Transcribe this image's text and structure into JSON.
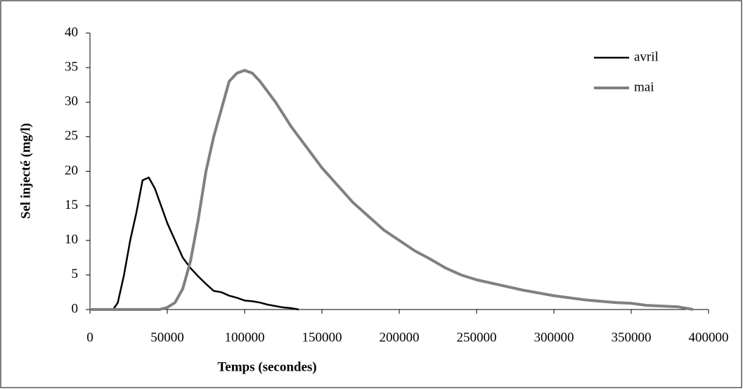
{
  "chart_data": {
    "type": "line",
    "x_label": "Temps (secondes)",
    "y_label": "Sel injecté (mg/l)",
    "xlim": [
      0,
      400000
    ],
    "xticks": [
      0,
      50000,
      100000,
      150000,
      200000,
      250000,
      300000,
      350000,
      400000
    ],
    "ylim": [
      0,
      40
    ],
    "yticks": [
      0,
      5,
      10,
      15,
      20,
      25,
      30,
      35,
      40
    ],
    "grid": false,
    "legend": "upper-right",
    "series": [
      {
        "name": "avril",
        "color": "#000000",
        "x": [
          0,
          15000,
          18000,
          22000,
          26000,
          30000,
          34000,
          38000,
          42000,
          46000,
          50000,
          55000,
          60000,
          65000,
          70000,
          75000,
          80000,
          85000,
          90000,
          95000,
          100000,
          105000,
          110000,
          115000,
          120000,
          125000,
          130000,
          135000
        ],
        "values": [
          0,
          0,
          1,
          5,
          10,
          14,
          18.7,
          19.1,
          17.5,
          15,
          12.5,
          10,
          7.5,
          6,
          4.8,
          3.7,
          2.7,
          2.5,
          2,
          1.7,
          1.3,
          1.2,
          1,
          0.7,
          0.5,
          0.3,
          0.2,
          0
        ]
      },
      {
        "name": "mai",
        "color": "#808080",
        "x": [
          0,
          45000,
          50000,
          55000,
          60000,
          65000,
          70000,
          75000,
          80000,
          85000,
          90000,
          95000,
          100000,
          105000,
          110000,
          115000,
          120000,
          130000,
          140000,
          150000,
          160000,
          170000,
          180000,
          190000,
          200000,
          210000,
          220000,
          230000,
          240000,
          250000,
          260000,
          270000,
          280000,
          290000,
          300000,
          310000,
          320000,
          330000,
          340000,
          350000,
          360000,
          370000,
          380000,
          390000
        ],
        "values": [
          0,
          0,
          0.3,
          1,
          3,
          7,
          13,
          20,
          25,
          29,
          33,
          34.2,
          34.6,
          34.2,
          33,
          31.5,
          30,
          26.5,
          23.5,
          20.5,
          18,
          15.5,
          13.5,
          11.5,
          10,
          8.5,
          7.3,
          6,
          5,
          4.3,
          3.8,
          3.3,
          2.8,
          2.4,
          2,
          1.7,
          1.4,
          1.2,
          1,
          0.9,
          0.6,
          0.5,
          0.4,
          0
        ]
      }
    ]
  }
}
